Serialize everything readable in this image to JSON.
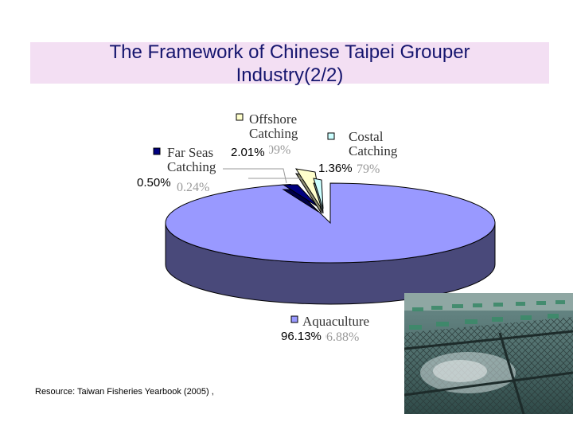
{
  "title_lines": [
    "The Framework of Chinese Taipei Grouper",
    "Industry(2/2)"
  ],
  "source": "Resource: Taiwan Fisheries Yearbook (2005) ,",
  "chart_data": {
    "type": "pie",
    "title": "The Framework of Chinese Taipei Grouper Industry(2/2)",
    "slices": [
      {
        "category": "Aquaculture",
        "value": 96.13,
        "label": "96.13%",
        "color": "#9999ff",
        "legend_lines": [
          "Aquaculture"
        ],
        "ghost_value": "96.88%"
      },
      {
        "category": "Far Seas Catching",
        "value": 0.5,
        "label": "0.50%",
        "color": "#000080",
        "legend_lines": [
          "Far Seas",
          "Catching"
        ],
        "ghost_value": "0.24%"
      },
      {
        "category": "Offshore Catching",
        "value": 2.01,
        "label": "2.01%",
        "color": "#ffffcc",
        "legend_lines": [
          "Offshore",
          "Catching"
        ],
        "ghost_value": "2.09%"
      },
      {
        "category": "Costal Catching",
        "value": 1.36,
        "label": "1.36%",
        "color": "#ccffff",
        "legend_lines": [
          "Costal",
          "Catching"
        ],
        "ghost_value": "0.79%"
      }
    ],
    "style": "3d-exploded",
    "legend_placement": "labels beside slices"
  },
  "photo": {
    "subject": "grouper aquaculture net cages"
  }
}
